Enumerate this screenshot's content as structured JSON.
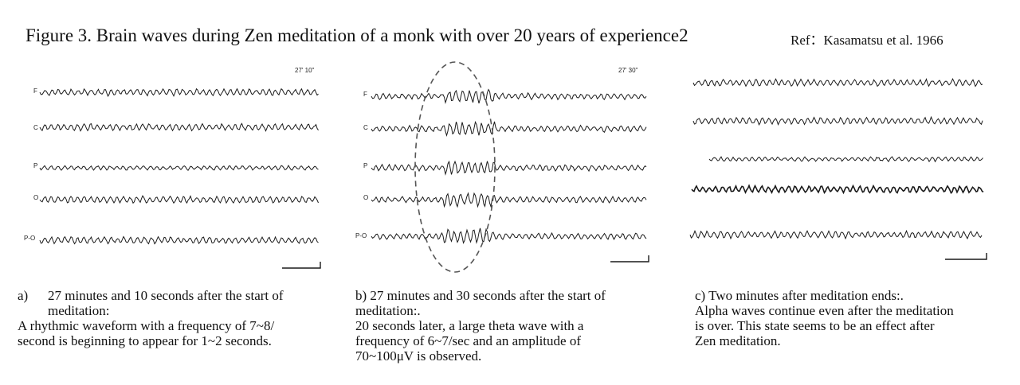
{
  "figure": {
    "title": "Figure 3. Brain waves during Zen meditation of a monk with over 20 years of experience2",
    "ref": "Ref：Kasamatsu et al. 1966"
  },
  "panels": [
    {
      "time_label": "27' 10\"",
      "channels": [
        "F",
        "C",
        "P",
        "O",
        "P-O"
      ],
      "caption": {
        "marker": "a)",
        "heading_line1": "27 minutes and 10 seconds after the start of",
        "heading_line2": "meditation:",
        "body_line1": "A rhythmic waveform with a frequency of 7~8/",
        "body_line2": "second is beginning to appear for 1~2 seconds."
      }
    },
    {
      "time_label": "27' 30\"",
      "channels": [
        "F",
        "C",
        "P",
        "O",
        "P-O"
      ],
      "caption": {
        "line1": "b) 27 minutes and 30 seconds after the start of",
        "line2": "meditation:.",
        "line3": "20 seconds later, a large theta wave with a",
        "line4": "frequency of 6~7/sec and an amplitude of",
        "line5": "70~100μV is observed."
      }
    },
    {
      "caption": {
        "line1": "c) Two minutes after meditation ends:.",
        "line2": "Alpha waves continue even after the meditation",
        "line3": "is over. This state seems to be an effect after",
        "line4": "Zen meditation."
      }
    }
  ],
  "colors": {
    "trace": "#1a1a1a",
    "ellipse": "#555555"
  }
}
